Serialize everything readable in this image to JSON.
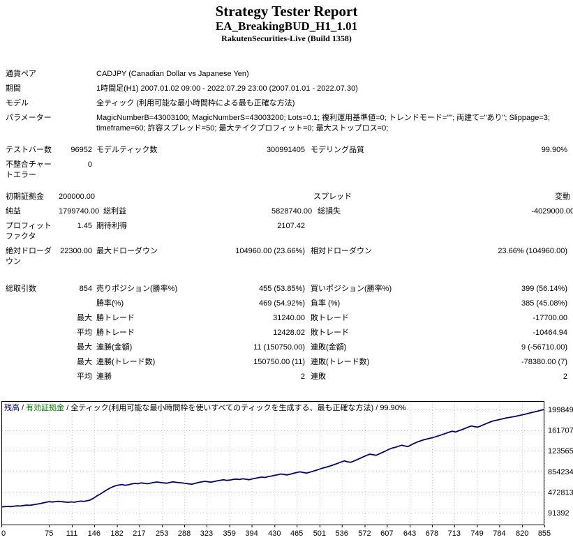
{
  "header": {
    "title": "Strategy Tester Report",
    "ea_name": "EA_BreakingBUD_H1_1.01",
    "server": "RakutenSecurities-Live (Build 1358)"
  },
  "summary": {
    "symbol": {
      "label": "通貨ペア",
      "value": "CADJPY (Canadian Dollar vs Japanese Yen)"
    },
    "period": {
      "label": "期間",
      "value": "1時間足(H1) 2007.01.02 09:00 - 2022.07.29 23:00 (2007.01.01 - 2022.07.30)"
    },
    "model": {
      "label": "モデル",
      "value": "全ティック (利用可能な最小時間枠による最も正確な方法)"
    },
    "parameters": {
      "label": "パラメーター",
      "value": "MagicNumberB=43003100; MagicNumberS=43003200; Lots=0.1; 複利運用基準値=0; トレンドモード=\"\"; 両建て=\"あり\"; Slippage=3; timeframe=60; 許容スプレッド=50; 最大テイクプロフィット=0; 最大ストップロス=0;"
    }
  },
  "results": {
    "testing": [
      {
        "l1": "テストバー数",
        "v1": "96952",
        "l2": "モデルティック数",
        "v2": "300991405",
        "l3": "モデリング品質",
        "v3": "99.90%"
      },
      {
        "l1": "不整合チャートエラー",
        "v1": "0",
        "l2": "",
        "v2": "",
        "l3": "",
        "v3": ""
      }
    ],
    "financial": [
      {
        "l1": "初期証拠金",
        "v1": "200000.00",
        "l2": "",
        "v2": "",
        "l3": "スプレッド",
        "v3": "変動"
      },
      {
        "l1": "純益",
        "v1": "1799740.00",
        "l2": "総利益",
        "v2": "5828740.00",
        "l3": "総損失",
        "v3": "-4029000.00"
      },
      {
        "l1": "プロフィットファクタ",
        "v1": "1.45",
        "l2": "期待利得",
        "v2": "2107.42",
        "l3": "",
        "v3": ""
      },
      {
        "l1": "絶対ドローダウン",
        "v1": "22300.00",
        "l2": "最大ドローダウン",
        "v2": "104960.00 (23.66%)",
        "l3": "相対ドローダウン",
        "v3": "23.66% (104960.00)"
      }
    ],
    "trades": [
      {
        "l1": "総取引数",
        "v1": "854",
        "l2": "売りポジション(勝率%)",
        "v2": "455 (53.85%)",
        "l3": "買いポジション(勝率%)",
        "v3": "399 (56.14%)"
      },
      {
        "l1": "",
        "v1": "",
        "l2": "勝率(%)",
        "v2": "469 (54.92%)",
        "l3": "負率 (%)",
        "v3": "385 (45.08%)"
      },
      {
        "l1": "",
        "v1": "最大",
        "l2": "勝トレード",
        "v2": "31240.00",
        "l3": "敗トレード",
        "v3": "-17700.00"
      },
      {
        "l1": "",
        "v1": "平均",
        "l2": "勝トレード",
        "v2": "12428.02",
        "l3": "敗トレード",
        "v3": "-10464.94"
      },
      {
        "l1": "",
        "v1": "最大",
        "l2": "連勝(金額)",
        "v2": "11 (150750.00)",
        "l3": "連敗(金額)",
        "v3": "9 (-56710.00)"
      },
      {
        "l1": "",
        "v1": "最大",
        "l2": "連勝(トレード数)",
        "v2": "150750.00 (11)",
        "l3": "連敗(トレード数)",
        "v3": "-78380.00 (7)"
      },
      {
        "l1": "",
        "v1": "平均",
        "l2": "連勝",
        "v2": "2",
        "l3": "連敗",
        "v3": "2"
      }
    ]
  },
  "chart_data": {
    "type": "line",
    "legend": {
      "balance": "残高",
      "equity": "有効証拠金",
      "model": "全ティック(利用可能な最小時間枠を使いすべてのティックを生成する、最も正確な方法)",
      "quality": "99.90%",
      "sep": " / "
    },
    "ylabel": "",
    "xlabel": "",
    "y_ticks": [
      1998495,
      1617075,
      1235654,
      854234,
      472813,
      91392
    ],
    "x_ticks": [
      0,
      75,
      111,
      146,
      182,
      217,
      253,
      288,
      323,
      359,
      394,
      430,
      465,
      501,
      536,
      572,
      607,
      643,
      678,
      713,
      749,
      784,
      820,
      855
    ],
    "x_max": 855,
    "line_color": "#000080",
    "equity_color": "#008000",
    "grid_color": "#c6c6c6",
    "series": [
      {
        "name": "残高",
        "points": [
          [
            0,
            200000
          ],
          [
            5,
            203000
          ],
          [
            10,
            207000
          ],
          [
            15,
            204000
          ],
          [
            20,
            212000
          ],
          [
            25,
            218000
          ],
          [
            30,
            215000
          ],
          [
            35,
            224000
          ],
          [
            40,
            231000
          ],
          [
            45,
            228000
          ],
          [
            50,
            238000
          ],
          [
            55,
            247000
          ],
          [
            60,
            258000
          ],
          [
            65,
            270000
          ],
          [
            70,
            283000
          ],
          [
            75,
            296000
          ],
          [
            80,
            288000
          ],
          [
            85,
            296000
          ],
          [
            90,
            301000
          ],
          [
            95,
            295000
          ],
          [
            100,
            289000
          ],
          [
            105,
            283000
          ],
          [
            110,
            291000
          ],
          [
            115,
            285000
          ],
          [
            120,
            297000
          ],
          [
            125,
            305000
          ],
          [
            130,
            300000
          ],
          [
            135,
            312000
          ],
          [
            140,
            326000
          ],
          [
            145,
            360000
          ],
          [
            150,
            398000
          ],
          [
            155,
            432000
          ],
          [
            160,
            468000
          ],
          [
            165,
            505000
          ],
          [
            170,
            540000
          ],
          [
            175,
            568000
          ],
          [
            180,
            590000
          ],
          [
            185,
            603000
          ],
          [
            190,
            612000
          ],
          [
            195,
            598000
          ],
          [
            200,
            607000
          ],
          [
            205,
            622000
          ],
          [
            210,
            633000
          ],
          [
            215,
            626000
          ],
          [
            220,
            641000
          ],
          [
            225,
            634000
          ],
          [
            230,
            626000
          ],
          [
            235,
            638000
          ],
          [
            240,
            650000
          ],
          [
            245,
            658000
          ],
          [
            250,
            651000
          ],
          [
            255,
            643000
          ],
          [
            260,
            637000
          ],
          [
            265,
            649000
          ],
          [
            270,
            661000
          ],
          [
            275,
            653000
          ],
          [
            280,
            647000
          ],
          [
            285,
            640000
          ],
          [
            290,
            632000
          ],
          [
            295,
            624000
          ],
          [
            300,
            618000
          ],
          [
            305,
            632000
          ],
          [
            310,
            648000
          ],
          [
            315,
            660000
          ],
          [
            320,
            671000
          ],
          [
            325,
            663000
          ],
          [
            330,
            656000
          ],
          [
            335,
            668000
          ],
          [
            340,
            680000
          ],
          [
            345,
            690000
          ],
          [
            350,
            699000
          ],
          [
            355,
            688000
          ],
          [
            360,
            694000
          ],
          [
            365,
            706000
          ],
          [
            370,
            713000
          ],
          [
            375,
            705000
          ],
          [
            380,
            718000
          ],
          [
            385,
            710000
          ],
          [
            390,
            701000
          ],
          [
            395,
            715000
          ],
          [
            400,
            728000
          ],
          [
            405,
            739000
          ],
          [
            410,
            748000
          ],
          [
            415,
            742000
          ],
          [
            420,
            758000
          ],
          [
            425,
            768000
          ],
          [
            430,
            781000
          ],
          [
            435,
            792000
          ],
          [
            440,
            806000
          ],
          [
            445,
            798000
          ],
          [
            450,
            790000
          ],
          [
            455,
            804000
          ],
          [
            460,
            820000
          ],
          [
            465,
            833000
          ],
          [
            470,
            846000
          ],
          [
            475,
            835000
          ],
          [
            480,
            822000
          ],
          [
            485,
            838000
          ],
          [
            490,
            855000
          ],
          [
            495,
            872000
          ],
          [
            500,
            893000
          ],
          [
            505,
            912000
          ],
          [
            510,
            928000
          ],
          [
            515,
            944000
          ],
          [
            520,
            962000
          ],
          [
            525,
            985000
          ],
          [
            530,
            1005000
          ],
          [
            535,
            1028000
          ],
          [
            540,
            1048000
          ],
          [
            545,
            1032000
          ],
          [
            550,
            1022000
          ],
          [
            555,
            1046000
          ],
          [
            560,
            1072000
          ],
          [
            565,
            1098000
          ],
          [
            570,
            1125000
          ],
          [
            575,
            1150000
          ],
          [
            580,
            1172000
          ],
          [
            585,
            1163000
          ],
          [
            590,
            1152000
          ],
          [
            595,
            1178000
          ],
          [
            600,
            1205000
          ],
          [
            605,
            1232000
          ],
          [
            610,
            1262000
          ],
          [
            615,
            1285000
          ],
          [
            620,
            1298000
          ],
          [
            625,
            1318000
          ],
          [
            630,
            1337000
          ],
          [
            635,
            1325000
          ],
          [
            640,
            1313000
          ],
          [
            645,
            1342000
          ],
          [
            650,
            1372000
          ],
          [
            655,
            1398000
          ],
          [
            660,
            1418000
          ],
          [
            665,
            1438000
          ],
          [
            670,
            1452000
          ],
          [
            675,
            1466000
          ],
          [
            680,
            1480000
          ],
          [
            685,
            1500000
          ],
          [
            690,
            1518000
          ],
          [
            695,
            1538000
          ],
          [
            700,
            1558000
          ],
          [
            705,
            1580000
          ],
          [
            710,
            1598000
          ],
          [
            715,
            1582000
          ],
          [
            720,
            1605000
          ],
          [
            725,
            1625000
          ],
          [
            730,
            1648000
          ],
          [
            735,
            1672000
          ],
          [
            740,
            1695000
          ],
          [
            745,
            1682000
          ],
          [
            750,
            1672000
          ],
          [
            755,
            1695000
          ],
          [
            760,
            1720000
          ],
          [
            765,
            1745000
          ],
          [
            770,
            1768000
          ],
          [
            775,
            1788000
          ],
          [
            780,
            1800000
          ],
          [
            785,
            1815000
          ],
          [
            790,
            1828000
          ],
          [
            795,
            1842000
          ],
          [
            800,
            1852000
          ],
          [
            805,
            1862000
          ],
          [
            810,
            1872000
          ],
          [
            815,
            1885000
          ],
          [
            820,
            1898000
          ],
          [
            825,
            1912000
          ],
          [
            830,
            1928000
          ],
          [
            835,
            1942000
          ],
          [
            840,
            1955000
          ],
          [
            845,
            1970000
          ],
          [
            850,
            1985000
          ],
          [
            855,
            1998495
          ]
        ]
      }
    ]
  }
}
